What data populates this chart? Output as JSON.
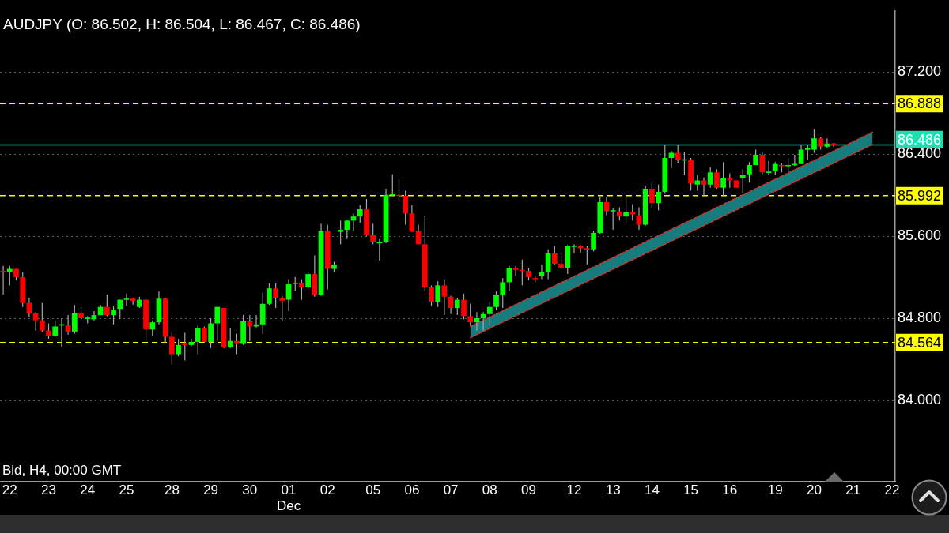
{
  "chart_data": {
    "type": "candlestick",
    "title": "AUDJPY (O: 86.502, H: 86.504, L: 86.467, C: 86.486)",
    "annotations": [
      "Bid, H4, 00:00 GMT"
    ],
    "categories": [
      null,
      "22",
      null,
      null,
      null,
      null,
      null,
      "23",
      null,
      null,
      null,
      null,
      null,
      "24",
      null,
      null,
      null,
      null,
      null,
      "25",
      null,
      null,
      null,
      null,
      null,
      null,
      "28",
      null,
      null,
      null,
      null,
      null,
      "29",
      null,
      null,
      null,
      null,
      null,
      "30",
      null,
      null,
      null,
      null,
      null,
      "01\nDec",
      null,
      null,
      null,
      null,
      null,
      "02",
      null,
      null,
      null,
      null,
      null,
      null,
      "05",
      null,
      null,
      null,
      null,
      null,
      "06",
      null,
      null,
      null,
      null,
      null,
      "07",
      null,
      null,
      null,
      null,
      null,
      "08",
      null,
      null,
      null,
      null,
      null,
      "09",
      null,
      null,
      null,
      null,
      null,
      null,
      "12",
      null,
      null,
      null,
      null,
      null,
      "13",
      null,
      null,
      null,
      null,
      null,
      "14",
      null,
      null,
      null,
      null,
      null,
      "15",
      null,
      null,
      null,
      null,
      null,
      "16",
      null,
      null,
      null,
      null,
      null,
      null,
      "19",
      null,
      null,
      null,
      null,
      null,
      "20",
      null,
      null,
      null,
      null,
      null,
      "21",
      null,
      null,
      null,
      null,
      null,
      "22"
    ],
    "ohlc": [
      [
        85.26,
        85.31,
        85.03,
        85.25
      ],
      [
        85.25,
        85.31,
        85.12,
        85.28
      ],
      [
        85.28,
        85.28,
        85.17,
        85.2
      ],
      [
        85.2,
        85.25,
        84.91,
        84.95
      ],
      [
        84.95,
        85.0,
        84.81,
        84.85
      ],
      [
        84.85,
        84.86,
        84.68,
        84.78
      ],
      [
        84.78,
        84.95,
        84.67,
        84.68
      ],
      [
        84.68,
        84.75,
        84.6,
        84.63
      ],
      [
        84.63,
        84.78,
        84.62,
        84.72
      ],
      [
        84.73,
        84.8,
        84.52,
        84.74
      ],
      [
        84.73,
        84.83,
        84.64,
        84.67
      ],
      [
        84.67,
        84.93,
        84.65,
        84.85
      ],
      [
        84.85,
        84.91,
        84.77,
        84.8
      ],
      [
        84.8,
        84.82,
        84.75,
        84.8
      ],
      [
        84.79,
        84.87,
        84.78,
        84.83
      ],
      [
        84.83,
        84.93,
        84.83,
        84.91
      ],
      [
        84.91,
        85.03,
        84.82,
        84.83
      ],
      [
        84.83,
        84.92,
        84.74,
        84.88
      ],
      [
        84.89,
        84.98,
        84.79,
        84.98
      ],
      [
        84.98,
        85.04,
        84.92,
        84.99
      ],
      [
        84.99,
        85.0,
        84.93,
        84.97
      ],
      [
        84.91,
        85.01,
        84.9,
        84.98
      ],
      [
        84.98,
        84.98,
        84.58,
        84.69
      ],
      [
        84.69,
        84.78,
        84.63,
        84.76
      ],
      [
        84.76,
        85.06,
        84.74,
        84.99
      ],
      [
        84.99,
        85.0,
        84.56,
        84.62
      ],
      [
        84.62,
        84.67,
        84.35,
        84.45
      ],
      [
        84.45,
        84.6,
        84.43,
        84.54
      ],
      [
        84.55,
        84.66,
        84.39,
        84.54
      ],
      [
        84.54,
        84.6,
        84.53,
        84.57
      ],
      [
        84.57,
        84.73,
        84.45,
        84.7
      ],
      [
        84.7,
        84.72,
        84.56,
        84.57
      ],
      [
        84.57,
        84.8,
        84.51,
        84.75
      ],
      [
        84.75,
        84.91,
        84.58,
        84.91
      ],
      [
        84.9,
        84.9,
        84.51,
        84.52
      ],
      [
        84.52,
        84.7,
        84.51,
        84.58
      ],
      [
        84.58,
        84.65,
        84.45,
        84.55
      ],
      [
        84.55,
        84.83,
        84.54,
        84.77
      ],
      [
        84.77,
        84.83,
        84.58,
        84.72
      ],
      [
        84.72,
        84.83,
        84.71,
        84.74
      ],
      [
        84.74,
        85.05,
        84.65,
        84.94
      ],
      [
        84.94,
        85.14,
        84.93,
        85.09
      ],
      [
        85.09,
        85.14,
        84.9,
        85.0
      ],
      [
        85.0,
        85.02,
        84.77,
        84.97
      ],
      [
        84.98,
        85.18,
        84.87,
        85.13
      ],
      [
        85.14,
        85.2,
        85.07,
        85.14
      ],
      [
        85.14,
        85.18,
        84.98,
        85.1
      ],
      [
        85.1,
        85.25,
        85.08,
        85.23
      ],
      [
        85.23,
        85.41,
        85.01,
        85.03
      ],
      [
        85.03,
        85.72,
        85.02,
        85.65
      ],
      [
        85.65,
        85.71,
        85.08,
        85.28
      ],
      [
        85.28,
        85.35,
        85.25,
        85.32
      ],
      [
        85.64,
        85.75,
        85.52,
        85.66
      ],
      [
        85.66,
        85.75,
        85.57,
        85.75
      ],
      [
        85.75,
        85.82,
        85.65,
        85.79
      ],
      [
        85.79,
        85.9,
        85.73,
        85.86
      ],
      [
        85.86,
        85.96,
        85.6,
        85.61
      ],
      [
        85.61,
        85.72,
        85.52,
        85.54
      ],
      [
        85.53,
        85.57,
        85.36,
        85.54
      ],
      [
        85.54,
        86.06,
        85.53,
        86.0
      ],
      [
        86.0,
        86.2,
        85.99,
        86.0
      ],
      [
        86.0,
        86.15,
        85.94,
        85.99
      ],
      [
        85.99,
        86.04,
        85.71,
        85.82
      ],
      [
        85.82,
        85.9,
        85.64,
        85.64
      ],
      [
        85.65,
        85.71,
        85.52,
        85.52
      ],
      [
        85.52,
        85.8,
        85.06,
        85.1
      ],
      [
        85.1,
        85.12,
        84.92,
        84.96
      ],
      [
        84.96,
        85.16,
        84.91,
        85.12
      ],
      [
        85.12,
        85.18,
        84.83,
        85.01
      ],
      [
        85.01,
        85.02,
        84.84,
        84.9
      ],
      [
        84.9,
        85.0,
        84.83,
        84.98
      ],
      [
        84.98,
        85.04,
        84.79,
        84.82
      ],
      [
        84.82,
        84.94,
        84.73,
        84.76
      ],
      [
        84.76,
        84.86,
        84.68,
        84.8
      ],
      [
        84.8,
        84.86,
        84.68,
        84.84
      ],
      [
        84.84,
        84.95,
        84.73,
        84.91
      ],
      [
        84.91,
        85.06,
        84.88,
        85.03
      ],
      [
        85.03,
        85.19,
        84.9,
        85.15
      ],
      [
        85.15,
        85.31,
        85.07,
        85.29
      ],
      [
        85.29,
        85.31,
        85.21,
        85.27
      ],
      [
        85.27,
        85.37,
        85.12,
        85.26
      ],
      [
        85.26,
        85.29,
        85.17,
        85.2
      ],
      [
        85.19,
        85.21,
        85.15,
        85.18
      ],
      [
        85.21,
        85.32,
        85.18,
        85.25
      ],
      [
        85.25,
        85.47,
        85.18,
        85.43
      ],
      [
        85.43,
        85.5,
        85.32,
        85.33
      ],
      [
        85.33,
        85.43,
        85.28,
        85.29
      ],
      [
        85.29,
        85.51,
        85.23,
        85.5
      ],
      [
        85.5,
        85.52,
        85.43,
        85.5
      ],
      [
        85.5,
        85.51,
        85.44,
        85.48
      ],
      [
        85.48,
        85.5,
        85.32,
        85.47
      ],
      [
        85.47,
        85.65,
        85.45,
        85.63
      ],
      [
        85.63,
        85.98,
        85.62,
        85.93
      ],
      [
        85.93,
        85.98,
        85.8,
        85.84
      ],
      [
        85.84,
        85.87,
        85.66,
        85.85
      ],
      [
        85.84,
        85.88,
        85.75,
        85.79
      ],
      [
        85.79,
        85.98,
        85.73,
        85.83
      ],
      [
        85.83,
        85.91,
        85.75,
        85.81
      ],
      [
        85.8,
        85.88,
        85.66,
        85.71
      ],
      [
        85.71,
        86.09,
        85.7,
        86.06
      ],
      [
        86.06,
        86.12,
        85.87,
        85.92
      ],
      [
        85.92,
        86.1,
        85.85,
        86.03
      ],
      [
        86.03,
        86.49,
        86.01,
        86.36
      ],
      [
        86.36,
        86.43,
        86.26,
        86.41
      ],
      [
        86.41,
        86.49,
        86.31,
        86.34
      ],
      [
        86.34,
        86.42,
        86.19,
        86.34
      ],
      [
        86.34,
        86.36,
        86.04,
        86.11
      ],
      [
        86.1,
        86.19,
        86.04,
        86.14
      ],
      [
        86.14,
        86.17,
        85.99,
        86.1
      ],
      [
        86.1,
        86.27,
        86.07,
        86.22
      ],
      [
        86.22,
        86.25,
        86.06,
        86.07
      ],
      [
        86.07,
        86.32,
        85.99,
        86.16
      ],
      [
        86.16,
        86.21,
        86.07,
        86.14
      ],
      [
        86.14,
        86.14,
        86.07,
        86.07
      ],
      [
        86.16,
        86.25,
        86.02,
        86.19
      ],
      [
        86.2,
        86.32,
        86.12,
        86.29
      ],
      [
        86.29,
        86.44,
        86.29,
        86.39
      ],
      [
        86.39,
        86.42,
        86.2,
        86.22
      ],
      [
        86.22,
        86.33,
        86.19,
        86.22
      ],
      [
        86.23,
        86.32,
        86.19,
        86.3
      ],
      [
        86.29,
        86.31,
        86.22,
        86.28
      ],
      [
        86.28,
        86.36,
        86.22,
        86.29
      ],
      [
        86.29,
        86.39,
        86.28,
        86.3
      ],
      [
        86.3,
        86.49,
        86.3,
        86.44
      ],
      [
        86.44,
        86.49,
        86.34,
        86.45
      ],
      [
        86.44,
        86.64,
        86.41,
        86.55
      ],
      [
        86.55,
        86.56,
        86.44,
        86.47
      ],
      [
        86.47,
        86.55,
        86.46,
        86.5
      ],
      [
        86.502,
        86.504,
        86.467,
        86.486
      ],
      null,
      null,
      null,
      null,
      null,
      null,
      null,
      null,
      null
    ],
    "colors": [
      "#ff0000",
      "#00ff00",
      "#ff0000",
      "#ff0000",
      "#ff0000",
      "#ff0000",
      "#ff0000",
      "#ff0000",
      "#00ff00",
      "#00ff00",
      "#ff0000",
      "#00ff00",
      "#ff0000",
      "#00ff00",
      "#00ff00",
      "#00ff00",
      "#ff0000",
      "#00ff00",
      "#00ff00",
      "#00ff00",
      "#ff0000",
      "#00ff00",
      "#ff0000",
      "#00ff00",
      "#00ff00",
      "#ff0000",
      "#ff0000",
      "#00ff00",
      "#ff0000",
      "#00ff00",
      "#00ff00",
      "#ff0000",
      "#00ff00",
      "#00ff00",
      "#ff0000",
      "#00ff00",
      "#ff0000",
      "#00ff00",
      "#ff0000",
      "#00ff00",
      "#00ff00",
      "#00ff00",
      "#ff0000",
      "#ff0000",
      "#00ff00",
      "#00ff00",
      "#ff0000",
      "#00ff00",
      "#ff0000",
      "#00ff00",
      "#ff0000",
      "#00ff00",
      "#00ff00",
      "#00ff00",
      "#00ff00",
      "#00ff00",
      "#ff0000",
      "#ff0000",
      "#00ff00",
      "#00ff00",
      "#00ff00",
      "#ff0000",
      "#ff0000",
      "#ff0000",
      "#ff0000",
      "#ff0000",
      "#ff0000",
      "#00ff00",
      "#ff0000",
      "#ff0000",
      "#00ff00",
      "#ff0000",
      "#ff0000",
      "#00ff00",
      "#00ff00",
      "#00ff00",
      "#00ff00",
      "#00ff00",
      "#00ff00",
      "#ff0000",
      "#ff0000",
      "#ff0000",
      "#ff0000",
      "#00ff00",
      "#00ff00",
      "#ff0000",
      "#ff0000",
      "#00ff00",
      "#00ff00",
      "#ff0000",
      "#ff0000",
      "#00ff00",
      "#00ff00",
      "#ff0000",
      "#00ff00",
      "#ff0000",
      "#00ff00",
      "#ff0000",
      "#ff0000",
      "#00ff00",
      "#ff0000",
      "#00ff00",
      "#00ff00",
      "#00ff00",
      "#ff0000",
      "#00ff00",
      "#ff0000",
      "#00ff00",
      "#ff0000",
      "#00ff00",
      "#ff0000",
      "#00ff00",
      "#ff0000",
      "#ff0000",
      "#00ff00",
      "#00ff00",
      "#00ff00",
      "#ff0000",
      "#00ff00",
      "#00ff00",
      "#ff0000",
      "#00ff00",
      "#00ff00",
      "#00ff00",
      "#00ff00",
      "#00ff00",
      "#ff0000",
      "#00ff00",
      "#ff0000",
      null,
      null,
      null,
      null,
      null,
      null,
      null,
      null,
      null
    ],
    "series": [
      {
        "type": "line",
        "color": "#d2362a",
        "line_style": "dashed",
        "values": [
          null,
          null,
          null,
          null,
          null,
          null,
          null,
          null,
          null,
          null,
          null,
          null,
          null,
          null,
          null,
          null,
          null,
          null,
          null,
          null,
          null,
          null,
          null,
          null,
          null,
          null,
          null,
          null,
          null,
          null,
          null,
          null,
          null,
          null,
          null,
          null,
          null,
          null,
          null,
          null,
          null,
          null,
          null,
          null,
          null,
          null,
          null,
          null,
          null,
          null,
          null,
          null,
          null,
          null,
          null,
          null,
          null,
          null,
          null,
          null,
          null,
          null,
          null,
          null,
          null,
          null,
          null,
          null,
          null,
          null,
          null,
          null,
          84.61,
          null,
          null,
          null,
          null,
          null,
          null,
          null,
          null,
          null,
          null,
          null,
          null,
          null,
          null,
          null,
          null,
          null,
          null,
          null,
          null,
          null,
          null,
          null,
          null,
          null,
          null,
          null,
          null,
          null,
          null,
          null,
          null,
          null,
          null,
          null,
          null,
          null,
          null,
          null,
          null,
          null,
          null,
          null,
          null,
          null,
          null,
          null,
          null,
          null,
          null,
          null,
          null,
          null,
          null,
          null,
          null,
          null,
          null,
          null,
          null,
          null,
          86.49,
          null,
          null,
          null
        ],
        "lower": [
          null,
          null,
          null,
          null,
          null,
          null,
          null,
          null,
          null,
          null,
          null,
          null,
          null,
          null,
          null,
          null,
          null,
          null,
          null,
          null,
          null,
          null,
          null,
          null,
          null,
          null,
          null,
          null,
          null,
          null,
          null,
          null,
          null,
          null,
          null,
          null,
          null,
          null,
          null,
          null,
          null,
          null,
          null,
          null,
          null,
          null,
          null,
          null,
          null,
          null,
          null,
          null,
          null,
          null,
          null,
          null,
          null,
          null,
          null,
          null,
          null,
          null,
          null,
          null,
          null,
          null,
          null,
          null,
          null,
          null,
          null,
          null,
          84.61,
          null,
          null,
          null,
          null,
          null,
          null,
          null,
          null,
          null,
          null,
          null,
          null,
          null,
          null,
          null,
          null,
          null,
          null,
          null,
          null,
          null,
          null,
          null,
          null,
          null,
          null,
          null,
          null,
          null,
          null,
          null,
          null,
          null,
          null,
          null,
          null,
          null,
          null,
          null,
          null,
          null,
          null,
          null,
          null,
          null,
          null,
          null,
          null,
          null,
          null,
          null,
          null,
          null,
          null,
          null,
          null,
          null,
          null,
          null,
          null,
          null,
          86.49,
          null,
          null,
          null
        ],
        "upper": [
          null,
          null,
          null,
          null,
          null,
          null,
          null,
          null,
          null,
          null,
          null,
          null,
          null,
          null,
          null,
          null,
          null,
          null,
          null,
          null,
          null,
          null,
          null,
          null,
          null,
          null,
          null,
          null,
          null,
          null,
          null,
          null,
          null,
          null,
          null,
          null,
          null,
          null,
          null,
          null,
          null,
          null,
          null,
          null,
          null,
          null,
          null,
          null,
          null,
          null,
          null,
          null,
          null,
          null,
          null,
          null,
          null,
          null,
          null,
          null,
          null,
          null,
          null,
          null,
          null,
          null,
          null,
          null,
          null,
          null,
          null,
          null,
          84.72,
          null,
          null,
          null,
          null,
          null,
          null,
          null,
          null,
          null,
          null,
          null,
          null,
          null,
          null,
          null,
          null,
          null,
          null,
          null,
          null,
          null,
          null,
          null,
          null,
          null,
          null,
          null,
          null,
          null,
          null,
          null,
          null,
          null,
          null,
          null,
          null,
          null,
          null,
          null,
          null,
          null,
          null,
          null,
          null,
          null,
          null,
          null,
          null,
          null,
          null,
          null,
          null,
          null,
          null,
          null,
          null,
          null,
          null,
          null,
          null,
          null,
          86.61,
          null,
          null,
          null
        ]
      },
      {
        "type": "line",
        "color": "#d2362a",
        "line_style": "dashed",
        "values": [
          null,
          null,
          null,
          null,
          null,
          null,
          null,
          null,
          null,
          null,
          null,
          null,
          null,
          null,
          null,
          null,
          null,
          null,
          null,
          null,
          null,
          null,
          null,
          null,
          null,
          null,
          null,
          null,
          null,
          null,
          null,
          null,
          null,
          null,
          null,
          null,
          null,
          null,
          null,
          null,
          null,
          null,
          null,
          null,
          null,
          null,
          null,
          null,
          null,
          null,
          null,
          null,
          null,
          null,
          null,
          null,
          null,
          null,
          null,
          null,
          null,
          null,
          null,
          null,
          null,
          null,
          null,
          null,
          null,
          null,
          null,
          null,
          84.72,
          null,
          null,
          null,
          null,
          null,
          null,
          null,
          null,
          null,
          null,
          null,
          null,
          null,
          null,
          null,
          null,
          null,
          null,
          null,
          null,
          null,
          null,
          null,
          null,
          null,
          null,
          null,
          null,
          null,
          null,
          null,
          null,
          null,
          null,
          null,
          null,
          null,
          null,
          null,
          null,
          null,
          null,
          null,
          null,
          null,
          null,
          null,
          null,
          null,
          null,
          null,
          null,
          null,
          null,
          null,
          null,
          null,
          null,
          null,
          null,
          null,
          86.61,
          null,
          null,
          null
        ]
      }
    ],
    "ylim": [
      83.21,
      87.79
    ],
    "yticks": [
      {
        "value": 84.0,
        "label": "84.000"
      },
      {
        "value": 84.8,
        "label": "84.800"
      },
      {
        "value": 85.6,
        "label": "85.600"
      },
      {
        "value": 86.4,
        "label": "86.400"
      },
      {
        "value": 87.2,
        "label": "87.200"
      }
    ],
    "grid": "y",
    "ref_lines": [
      {
        "axis": "y",
        "value": 86.888,
        "label": "86.888",
        "color": "#ffff00",
        "line_style": "dashed"
      },
      {
        "axis": "y",
        "value": 86.486,
        "label": "86.486",
        "color": "#1de0b0",
        "line_style": "solid"
      },
      {
        "axis": "y",
        "value": 85.992,
        "label": "85.992",
        "color": "#ffff00",
        "line_style": "dashed"
      },
      {
        "axis": "y",
        "value": 84.564,
        "label": "84.564",
        "color": "#ffff00",
        "line_style": "dashed"
      }
    ]
  }
}
